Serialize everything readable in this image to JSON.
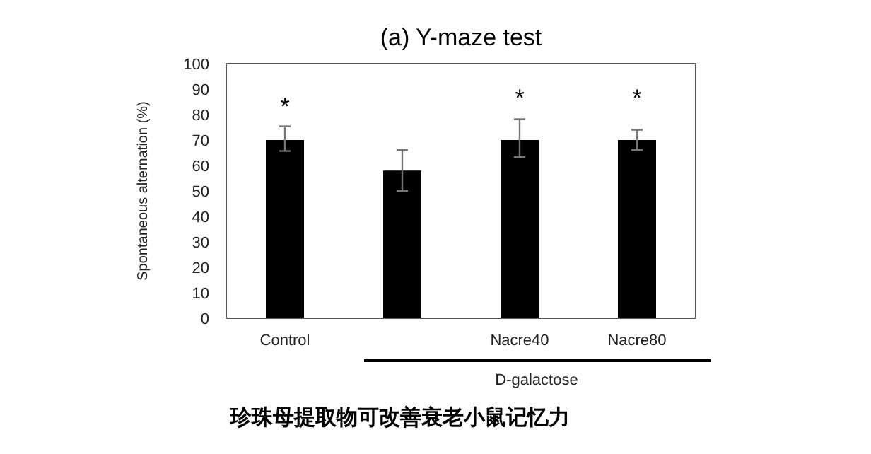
{
  "chart_data": {
    "type": "bar",
    "title": "(a) Y-maze test",
    "ylabel": "Spontaneous alternation (%)",
    "categories": [
      "Control",
      null,
      "Nacre40",
      "Nacre80"
    ],
    "values": [
      70,
      58,
      70,
      70
    ],
    "errors": [
      [
        65.7,
        75.4
      ],
      [
        50,
        66.1
      ],
      [
        63.3,
        78.2
      ],
      [
        66.1,
        74
      ]
    ],
    "color": "#000000",
    "ylim": [
      0,
      100
    ],
    "yticks": [
      0,
      10,
      20,
      30,
      40,
      50,
      60,
      70,
      80,
      90,
      100
    ],
    "grid": false,
    "annotations": [
      "*",
      "*",
      "*",
      "D-galactose",
      "珍珠母提取物可改善衰老小鼠记忆力"
    ]
  }
}
